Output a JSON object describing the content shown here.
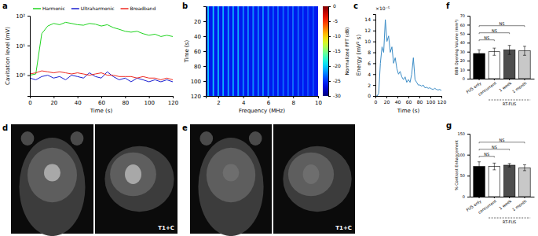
{
  "chart_data": [
    {
      "type": "line",
      "title": "a",
      "x": [
        0,
        5,
        10,
        15,
        20,
        25,
        30,
        35,
        40,
        45,
        50,
        55,
        60,
        65,
        70,
        75,
        80,
        85,
        90,
        95,
        100,
        105,
        110,
        115,
        120
      ],
      "series": [
        {
          "name": "Harmonic",
          "color": "#1fd41f",
          "values": [
            1.0,
            1.1,
            25,
            45,
            55,
            50,
            60,
            55,
            50,
            48,
            55,
            52,
            45,
            50,
            40,
            35,
            30,
            28,
            30,
            25,
            22,
            24,
            20,
            22,
            20
          ]
        },
        {
          "name": "Ultraharmonic",
          "color": "#1a1fd1",
          "values": [
            0.8,
            0.7,
            0.9,
            1.0,
            0.8,
            0.9,
            0.7,
            1.0,
            0.9,
            0.8,
            1.2,
            0.9,
            0.8,
            1.3,
            0.9,
            0.7,
            0.8,
            0.6,
            0.8,
            0.7,
            0.6,
            0.7,
            0.6,
            0.7,
            0.6
          ]
        },
        {
          "name": "Broadband",
          "color": "#ef2a22",
          "values": [
            1.1,
            1.2,
            1.4,
            1.3,
            1.2,
            1.3,
            1.2,
            1.1,
            1.2,
            1.1,
            1.0,
            1.1,
            1.2,
            1.0,
            1.0,
            0.9,
            0.9,
            0.9,
            0.8,
            0.9,
            0.8,
            0.8,
            0.7,
            0.8,
            0.7
          ]
        }
      ],
      "xlabel": "Time (s)",
      "ylabel": "Cavitation level (mV)",
      "xlim": [
        0,
        120
      ],
      "xticks": [
        0,
        20,
        40,
        60,
        80,
        100,
        120
      ],
      "ylim": [
        0.2,
        100
      ],
      "yticks": [
        {
          "value": 1,
          "label": "10⁰"
        },
        {
          "value": 10,
          "label": "10¹"
        },
        {
          "value": 100,
          "label": "10²"
        }
      ],
      "log": "y",
      "legend": "top"
    },
    {
      "type": "heatmap",
      "title": "b",
      "x_bins": [
        1.0,
        1.15,
        1.25,
        1.55,
        1.65,
        1.95,
        2.05,
        2.35,
        2.45,
        2.75,
        2.85,
        3.15,
        3.25,
        3.55,
        3.65,
        3.95,
        4.05,
        4.35,
        4.45,
        4.75,
        4.85,
        5.15,
        5.25,
        5.55,
        5.65,
        5.95,
        6.05,
        6.35,
        6.45,
        6.75,
        6.85,
        7.15,
        7.25,
        7.55,
        7.65,
        7.95,
        8.05,
        8.35,
        8.45,
        8.75,
        8.85,
        9.15,
        9.25,
        9.55,
        9.65,
        10.0
      ],
      "y_bins": [
        0,
        120
      ],
      "values": [
        [
          -26,
          -20,
          -26,
          -20,
          -26,
          -20,
          -26,
          -21,
          -26,
          -21,
          -26,
          -21,
          -26,
          -21,
          -26,
          -22,
          -26,
          -22,
          -26,
          -22,
          -26,
          -22,
          -26,
          -22,
          -26,
          -22,
          -26,
          -23,
          -26,
          -23,
          -26,
          -23,
          -26,
          -23,
          -26,
          -23,
          -26,
          -23,
          -26,
          -24,
          -26,
          -24,
          -26,
          -24,
          -26
        ]
      ],
      "xlabel": "Frequency (MHz)",
      "ylabel": "Time (s)",
      "xlim": [
        1,
        10
      ],
      "xticks": [
        2,
        4,
        6,
        8,
        10
      ],
      "ylim": [
        0,
        120
      ],
      "yticks": [
        20,
        40,
        60,
        80,
        100,
        120
      ],
      "colorbar": {
        "range": [
          -30,
          0
        ],
        "ticks": [
          0,
          -5,
          -10,
          -15,
          -20,
          -25,
          -30
        ],
        "label": "Normalized FFT (dB)"
      }
    },
    {
      "type": "line",
      "title": "c",
      "x": [
        0,
        3,
        6,
        9,
        12,
        15,
        18,
        21,
        24,
        27,
        30,
        33,
        36,
        39,
        42,
        45,
        48,
        51,
        54,
        57,
        60,
        63,
        66,
        69,
        72,
        75,
        78,
        81,
        84,
        87,
        90,
        93,
        96,
        99,
        102,
        105,
        108,
        111,
        114,
        117,
        120
      ],
      "values": [
        0,
        0,
        0.5,
        6,
        9,
        8,
        14,
        10,
        11,
        8,
        9,
        6,
        7,
        5,
        4,
        4.5,
        3.5,
        3,
        3.5,
        2.5,
        3,
        2.5,
        4,
        7,
        3,
        2.5,
        2,
        2,
        1.8,
        2,
        1.5,
        1.6,
        1.4,
        1.5,
        1.3,
        1.2,
        1.4,
        1.2,
        1.1,
        1.2,
        1.0
      ],
      "color": "#3b8cc6",
      "xlabel": "Time (s)",
      "ylabel": "Energy (mV² s)",
      "annotations": [
        "×10⁻⁵"
      ],
      "xlim": [
        0,
        120
      ],
      "xticks": [
        0,
        20,
        40,
        60,
        80,
        100,
        120
      ],
      "ylim": [
        0,
        15
      ],
      "yticks": [
        0,
        2,
        4,
        6,
        8,
        10,
        12,
        14
      ]
    },
    {
      "type": "image",
      "title": "d",
      "annotations": [
        "T1+C"
      ]
    },
    {
      "type": "image",
      "title": "e",
      "annotations": [
        "T1+C"
      ]
    },
    {
      "type": "bar",
      "title": "f",
      "categories": [
        "FUS only",
        "concurrent",
        "1 week",
        "1 month"
      ],
      "values": [
        28,
        30,
        32,
        31
      ],
      "errors": [
        4,
        4,
        5,
        5
      ],
      "colors": [
        "#000000",
        "#ffffff",
        "#4d4d4d",
        "#c8c8c8"
      ],
      "ylabel": "BBB Opening Volume (mm³)",
      "ylim": [
        0,
        70
      ],
      "yticks": [
        0,
        10,
        20,
        30,
        40,
        50,
        60,
        70
      ],
      "groups": [
        {
          "label": "RT-FUS",
          "categories": [
            "concurrent",
            "1 week",
            "1 month"
          ]
        }
      ],
      "comparisons": [
        {
          "categories": [
            "FUS only",
            "concurrent"
          ],
          "label": "NS"
        },
        {
          "categories": [
            "FUS only",
            "1 week"
          ],
          "label": "NS"
        },
        {
          "categories": [
            "FUS only",
            "1 month"
          ],
          "label": "NS"
        }
      ]
    },
    {
      "type": "bar",
      "title": "g",
      "categories": [
        "FUS only",
        "concurrent",
        "1 week",
        "1 month"
      ],
      "values": [
        72,
        72,
        75,
        69
      ],
      "errors": [
        11,
        8,
        4,
        7
      ],
      "colors": [
        "#000000",
        "#ffffff",
        "#4d4d4d",
        "#c8c8c8"
      ],
      "ylabel": "% Contrast Enhancement",
      "ylim": [
        0,
        150
      ],
      "yticks": [
        0,
        50,
        100,
        150
      ],
      "groups": [
        {
          "label": "RT-FUS",
          "categories": [
            "concurrent",
            "1 week",
            "1 month"
          ]
        }
      ],
      "comparisons": [
        {
          "categories": [
            "FUS only",
            "concurrent"
          ],
          "label": "NS"
        },
        {
          "categories": [
            "FUS only",
            "1 week"
          ],
          "label": "NS"
        },
        {
          "categories": [
            "FUS only",
            "1 month"
          ],
          "label": "NS"
        }
      ]
    }
  ]
}
